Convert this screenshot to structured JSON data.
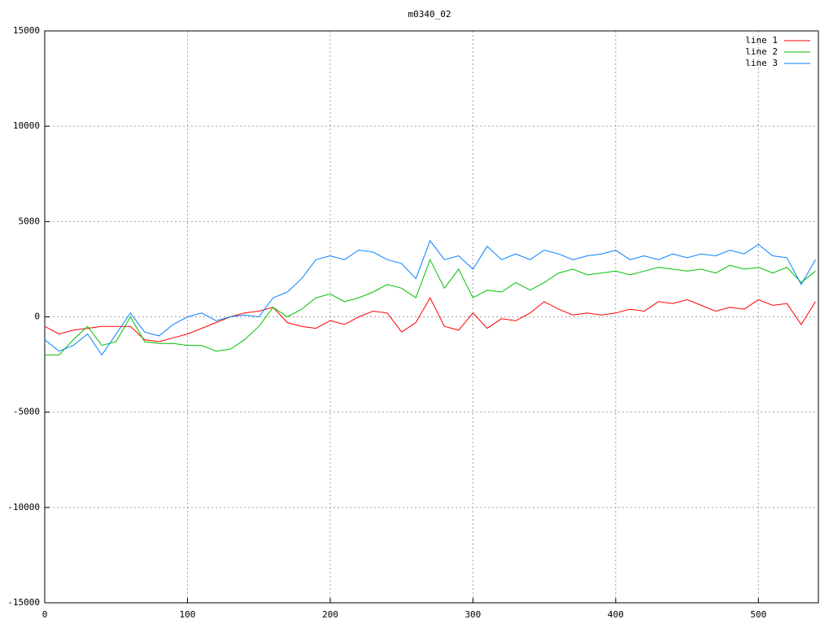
{
  "chart_data": {
    "type": "line",
    "title": "m0340_02",
    "x": [
      0,
      10,
      20,
      30,
      40,
      50,
      60,
      70,
      80,
      90,
      100,
      110,
      120,
      130,
      140,
      150,
      160,
      170,
      180,
      190,
      200,
      210,
      220,
      230,
      240,
      250,
      260,
      270,
      280,
      290,
      300,
      310,
      320,
      330,
      340,
      350,
      360,
      370,
      380,
      390,
      400,
      410,
      420,
      430,
      440,
      450,
      460,
      470,
      480,
      490,
      500,
      510,
      520,
      530,
      540
    ],
    "series": [
      {
        "name": "line 1",
        "color": "#ff0000",
        "values": [
          -500,
          -900,
          -700,
          -600,
          -500,
          -500,
          -500,
          -1200,
          -1300,
          -1100,
          -900,
          -600,
          -300,
          0,
          200,
          300,
          500,
          -300,
          -500,
          -600,
          -200,
          -400,
          0,
          300,
          200,
          -800,
          -300,
          1000,
          -500,
          -700,
          200,
          -600,
          -100,
          -200,
          200,
          800,
          400,
          100,
          200,
          100,
          200,
          400,
          300,
          800,
          700,
          900,
          600,
          300,
          500,
          400,
          900,
          600,
          700,
          -400,
          800
        ]
      },
      {
        "name": "line 2",
        "color": "#00c000",
        "values": [
          -2000,
          -2000,
          -1200,
          -500,
          -1500,
          -1300,
          0,
          -1300,
          -1400,
          -1400,
          -1500,
          -1500,
          -1800,
          -1700,
          -1200,
          -500,
          500,
          0,
          400,
          1000,
          1200,
          800,
          1000,
          1300,
          1700,
          1500,
          1000,
          3000,
          1500,
          2500,
          1000,
          1400,
          1300,
          1800,
          1400,
          1800,
          2300,
          2500,
          2200,
          2300,
          2400,
          2200,
          2400,
          2600,
          2500,
          2400,
          2500,
          2300,
          2700,
          2500,
          2600,
          2300,
          2600,
          1800,
          2400
        ]
      },
      {
        "name": "line 3",
        "color": "#0080ff",
        "values": [
          -1200,
          -1800,
          -1500,
          -900,
          -2000,
          -900,
          200,
          -800,
          -1000,
          -400,
          0,
          200,
          -200,
          0,
          100,
          0,
          1000,
          1300,
          2000,
          3000,
          3200,
          3000,
          3500,
          3400,
          3000,
          2800,
          2000,
          4000,
          3000,
          3200,
          2500,
          3700,
          3000,
          3300,
          3000,
          3500,
          3300,
          3000,
          3200,
          3300,
          3500,
          3000,
          3200,
          3000,
          3300,
          3100,
          3300,
          3200,
          3500,
          3300,
          3800,
          3200,
          3100,
          1700,
          3000
        ]
      }
    ],
    "xlim": [
      0,
      542
    ],
    "xticks": [
      0,
      100,
      200,
      300,
      400,
      500
    ],
    "ylim": [
      -15000,
      15000
    ],
    "yticks": [
      -15000,
      -10000,
      -5000,
      0,
      5000,
      10000,
      15000
    ],
    "grid": true,
    "legend": "top-right"
  }
}
